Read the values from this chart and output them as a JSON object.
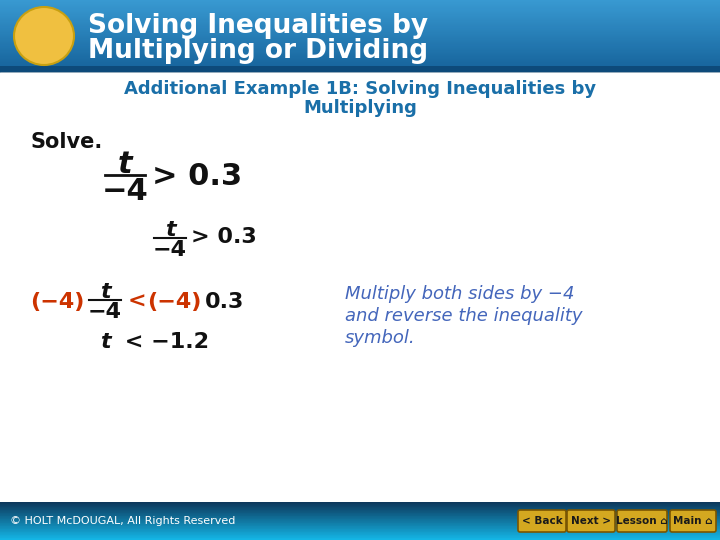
{
  "header_bg_top": "#1a7bbf",
  "header_bg_bottom": "#3aabdb",
  "header_text_color": "#ffffff",
  "circle_color": "#f0c040",
  "circle_edge_color": "#c8a010",
  "subtitle_color": "#1a6fa8",
  "body_bg_color": "#ffffff",
  "footer_bg_left": "#0d3a5c",
  "footer_bg_right": "#1ab8e8",
  "footer_text": "© HOLT McDOUGAL, All Rights Reserved",
  "footer_text_color": "#ffffff",
  "footer_font_size": 8,
  "button_color": "#d4a820",
  "button_text_color": "#1a1a1a",
  "buttons": [
    "< Back",
    "Next >",
    "Lesson",
    "Main"
  ],
  "orange_color": "#cc3300",
  "blue_color": "#4466bb",
  "black_color": "#111111",
  "dark_blue_header": "#1565a0"
}
